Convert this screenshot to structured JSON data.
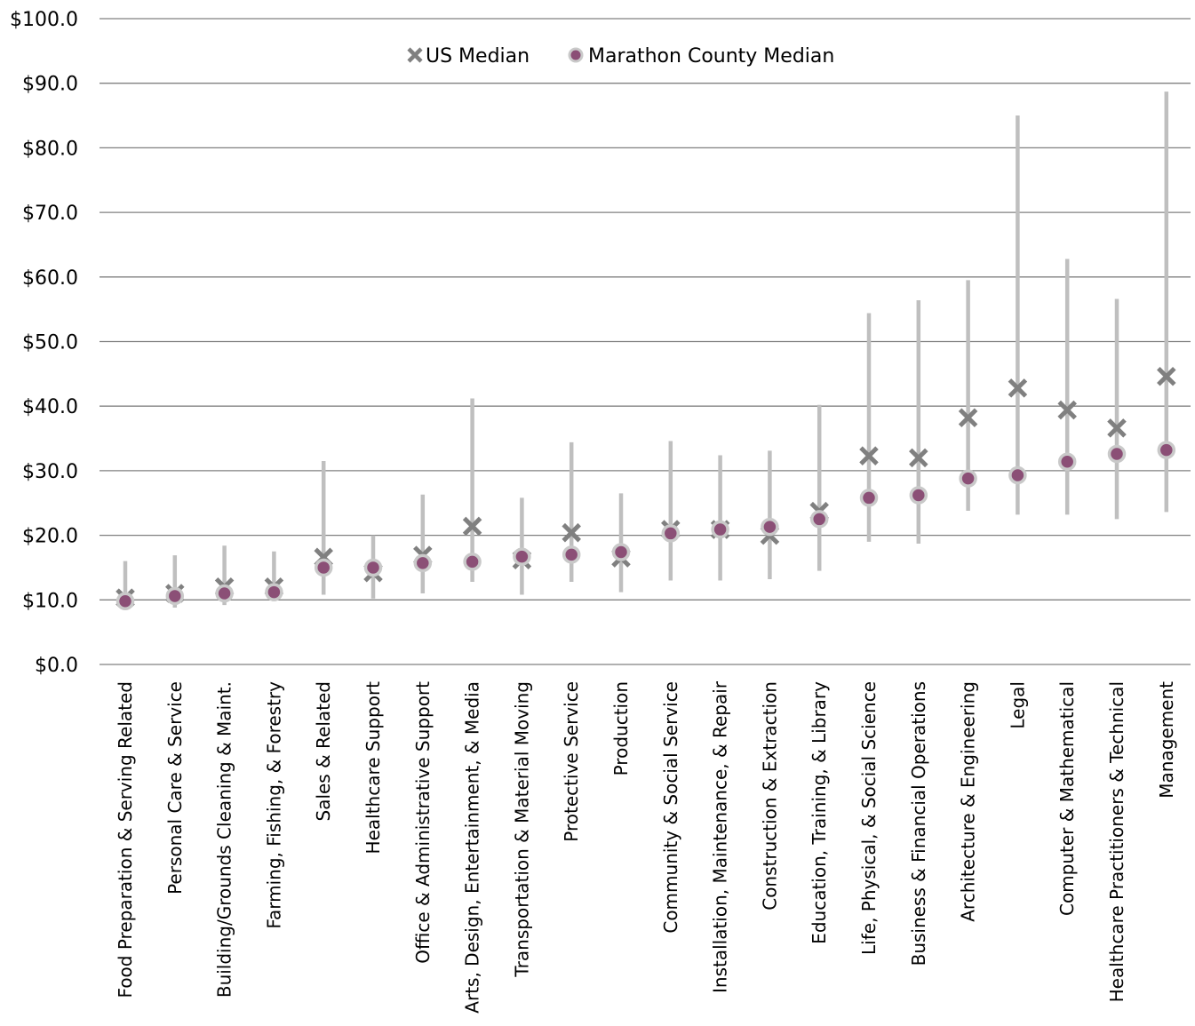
{
  "chart_data": {
    "type": "scatter",
    "title": "",
    "xlabel": "",
    "ylabel": "",
    "ylim": [
      0,
      100
    ],
    "y_ticks": [
      "$0.0",
      "$10.0",
      "$20.0",
      "$30.0",
      "$40.0",
      "$50.0",
      "$60.0",
      "$70.0",
      "$80.0",
      "$90.0",
      "$100.0"
    ],
    "grid": true,
    "legend": "top",
    "categories": [
      "Food Preparation & Serving Related",
      "Personal Care & Service",
      "Building/Grounds Cleaning & Maint.",
      "Farming, Fishing, & Forestry",
      "Sales & Related",
      "Healthcare Support",
      "Office & Administrative Support",
      "Arts, Design, Entertainment, & Media",
      "Transportation & Material Moving",
      "Protective Service",
      "Production",
      "Community & Social Service",
      "Installation, Maintenance, & Repair",
      "Construction & Extraction",
      "Education, Training, & Library",
      "Life, Physical, & Social Science",
      "Business & Financial Operations",
      "Architecture & Engineering",
      "Legal",
      "Computer & Mathematical",
      "Healthcare Practitioners & Technical",
      "Management"
    ],
    "range_low": [
      9.5,
      8.8,
      9.2,
      9.8,
      10.8,
      10.2,
      11.0,
      12.8,
      10.8,
      12.8,
      11.2,
      13.0,
      13.0,
      13.2,
      14.5,
      19.0,
      18.7,
      23.8,
      23.2,
      23.2,
      22.5,
      23.6
    ],
    "range_high": [
      16.0,
      16.9,
      18.4,
      17.5,
      31.5,
      20.0,
      26.3,
      41.2,
      25.8,
      34.4,
      26.5,
      34.6,
      32.4,
      33.1,
      40.2,
      54.4,
      56.4,
      59.5,
      85.0,
      62.8,
      56.6,
      88.7
    ],
    "series": [
      {
        "name": "US Median",
        "marker": "x",
        "color": "#808080",
        "values": [
          10.3,
          11.0,
          12.0,
          12.0,
          16.6,
          14.2,
          16.9,
          21.4,
          16.2,
          20.4,
          16.5,
          20.9,
          20.9,
          20.0,
          23.7,
          32.3,
          32.0,
          38.2,
          42.8,
          39.4,
          36.6,
          44.6
        ]
      },
      {
        "name": "Marathon County Median",
        "marker": "circle",
        "color": "#8b4f76",
        "values": [
          9.8,
          10.6,
          11.0,
          11.2,
          15.0,
          15.0,
          15.7,
          15.9,
          16.7,
          17.0,
          17.4,
          20.3,
          20.9,
          21.3,
          22.5,
          25.8,
          26.2,
          28.8,
          29.3,
          31.4,
          32.6,
          33.2
        ]
      }
    ],
    "colors": {
      "range_line": "#bfbfbf",
      "grid": "#808080",
      "circle_fill": "#8b4f76",
      "circle_stroke": "#c9c9c9",
      "x_marker": "#808080"
    }
  }
}
